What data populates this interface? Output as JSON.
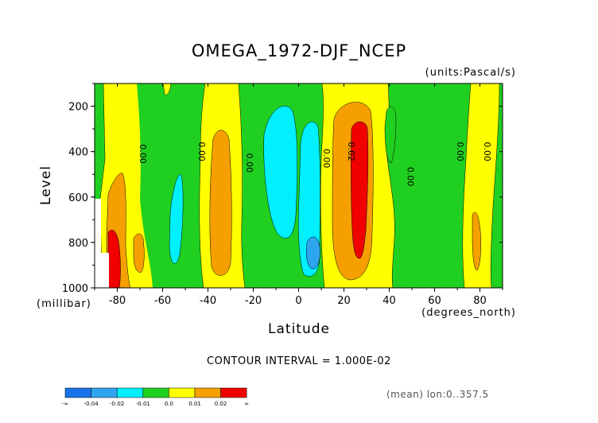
{
  "chart_data": {
    "type": "heatmap",
    "subtype": "filled-contour",
    "title": "OMEGA_1972-DJF_NCEP",
    "units_label": "(units:Pascal/s)",
    "xlabel": "Latitude",
    "x_units_label": "(degrees_north)",
    "ylabel": "Level",
    "y_units_label": "(millibar)",
    "xlim": [
      -90,
      90
    ],
    "ylim": [
      1000,
      100
    ],
    "x_ticks": [
      -80,
      -60,
      -40,
      -20,
      0,
      20,
      40,
      60,
      80
    ],
    "x_tick_labels": [
      "-80",
      "-60",
      "-40",
      "-20",
      "0",
      "20",
      "40",
      "60",
      "80"
    ],
    "y_ticks": [
      200,
      400,
      600,
      800,
      1000
    ],
    "y_tick_labels": [
      "200",
      "400",
      "600",
      "800",
      "1000"
    ],
    "contour_interval_text": "CONTOUR INTERVAL = 1.000E-02",
    "contour_line_labels": [
      "0.00",
      "0.00",
      "0.00",
      "0.00",
      "0.02",
      "0.00",
      "0.00",
      "0.00"
    ],
    "colorbar": {
      "levels": [
        "-∞",
        "-0.04",
        "-0.02",
        "-0.01",
        "0.0",
        "0.01",
        "0.02",
        "∞"
      ],
      "colors": [
        "#1874e8",
        "#2ea4ee",
        "#00f0ff",
        "#20d020",
        "#ffff00",
        "#f5a000",
        "#f00000"
      ]
    },
    "regions": [
      {
        "value_class": "0.0 to 0.01",
        "lat": [
          -72,
          -60
        ],
        "level": [
          100,
          1000
        ]
      },
      {
        "value_class": "0.0 to 0.01",
        "lat": [
          -48,
          -25
        ],
        "level": [
          100,
          1000
        ]
      },
      {
        "value_class": "0.01 to 0.02",
        "lat": [
          -42,
          -30
        ],
        "level": [
          420,
          940
        ]
      },
      {
        "value_class": "0.01 to 0.02",
        "lat": [
          -85,
          -75
        ],
        "level": [
          480,
          1000
        ]
      },
      {
        "value_class": "0.02 to ∞",
        "lat": [
          -86,
          -82
        ],
        "level": [
          750,
          1000
        ]
      },
      {
        "value_class": "-0.01 to -0.02",
        "lat": [
          -15,
          0
        ],
        "level": [
          160,
          970
        ]
      },
      {
        "value_class": "-0.01 to -0.02",
        "lat": [
          -56,
          -50
        ],
        "level": [
          500,
          920
        ]
      },
      {
        "value_class": "-0.02 to -0.04",
        "lat": [
          4,
          9
        ],
        "level": [
          780,
          920
        ]
      },
      {
        "value_class": "0.0 to 0.01",
        "lat": [
          9,
          46
        ],
        "level": [
          100,
          1000
        ]
      },
      {
        "value_class": "0.01 to 0.02",
        "lat": [
          16,
          32
        ],
        "level": [
          100,
          1000
        ]
      },
      {
        "value_class": "0.02 to ∞",
        "lat": [
          23,
          28
        ],
        "level": [
          270,
          880
        ]
      },
      {
        "value_class": "0.0 to 0.01",
        "lat": [
          62,
          90
        ],
        "level": [
          100,
          1000
        ]
      },
      {
        "value_class": "0.01 to 0.02",
        "lat": [
          78,
          82
        ],
        "level": [
          600,
          950
        ]
      }
    ]
  },
  "footer": {
    "mean_text": "(mean) lon:0..357.5"
  }
}
